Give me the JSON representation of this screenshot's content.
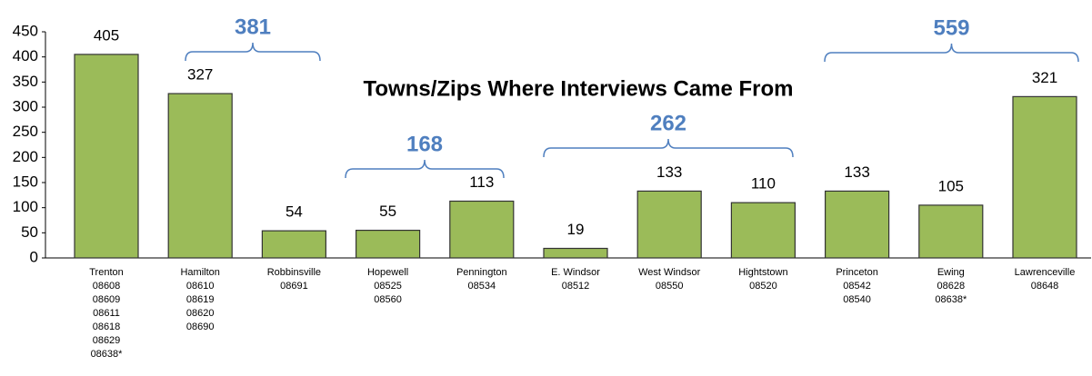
{
  "chart_data": {
    "type": "bar",
    "title": "Towns/Zips Where Interviews Came From",
    "categories": [
      [
        "Trenton",
        "08608",
        "08609",
        "08611",
        "08618",
        "08629",
        "08638*"
      ],
      [
        "Hamilton",
        "08610",
        "08619",
        "08620",
        "08690"
      ],
      [
        "Robbinsville",
        "08691"
      ],
      [
        "Hopewell",
        "08525",
        "08560"
      ],
      [
        "Pennington",
        "08534"
      ],
      [
        "E. Windsor",
        "08512"
      ],
      [
        "West Windsor",
        "08550"
      ],
      [
        "Hightstown",
        "08520"
      ],
      [
        "Princeton",
        "08542",
        "08540"
      ],
      [
        "Ewing",
        "08628",
        "08638*"
      ],
      [
        "Lawrenceville",
        "08648"
      ]
    ],
    "values": [
      405,
      327,
      54,
      55,
      113,
      19,
      133,
      110,
      133,
      105,
      321
    ],
    "color": "#9bbb59",
    "ylim": [
      0,
      450
    ],
    "yticks": [
      0,
      50,
      100,
      150,
      200,
      250,
      300,
      350,
      400,
      450
    ],
    "groups": [
      381,
      168,
      262,
      559
    ],
    "group_color": "#4f7fbf"
  }
}
